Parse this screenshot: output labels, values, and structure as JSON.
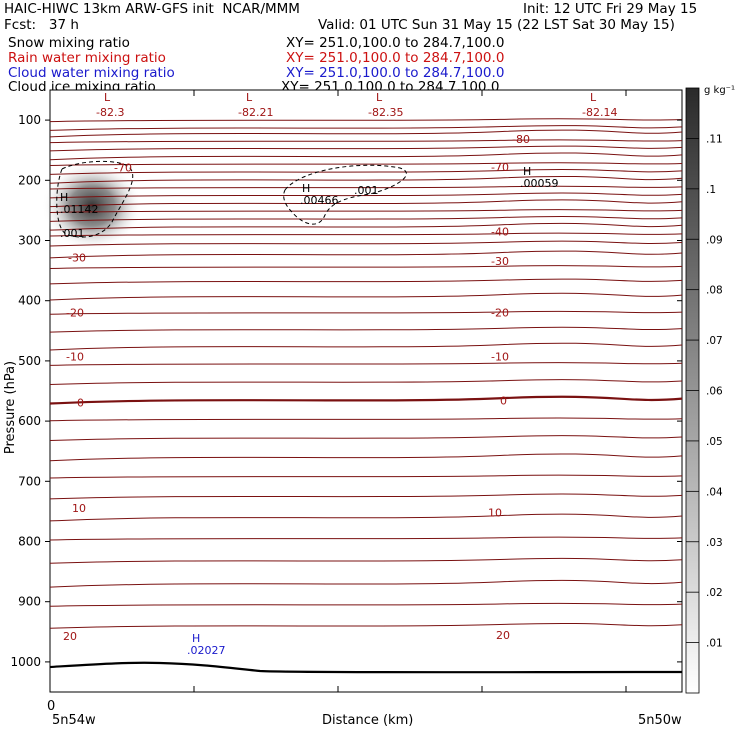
{
  "header": {
    "left1": "HAIC-HIWC 13km ARW-GFS init  NCAR/MMM",
    "right1": "Init: 12 UTC Fri 29 May 15",
    "left2": "Fcst:   37 h",
    "right2": "Valid: 01 UTC Sun 31 May 15 (22 LST Sat 30 May 15)",
    "fields": [
      {
        "name": "Snow mixing ratio",
        "xy": "XY= 251.0,100.0 to 284.7,100.0",
        "color": "#000000"
      },
      {
        "name": "Rain water mixing ratio",
        "xy": "XY= 251.0,100.0 to 284.7,100.0",
        "color": "#cc1111"
      },
      {
        "name": "Cloud water mixing ratio",
        "xy": "XY= 251.0,100.0 to 284.7,100.0",
        "color": "#1a1acc"
      },
      {
        "name": "Cloud ice mixing ratio",
        "xy": "XY= 251.0,100.0 to 284.7,100.0",
        "color": "#000000"
      }
    ]
  },
  "chart_data": {
    "type": "contour",
    "ylabel": "Pressure (hPa)",
    "xlabel": "Distance (km)",
    "x_ticks": [
      "0"
    ],
    "x_endpoints": [
      "5n54w",
      "5n50w"
    ],
    "y_ticks": [
      100,
      200,
      300,
      400,
      500,
      600,
      700,
      800,
      900,
      1000
    ],
    "ylim": [
      1050,
      50
    ],
    "temperature_contour_labels": [
      "-80",
      "-70",
      "-40",
      "-30",
      "-20",
      "-10",
      "0",
      "10",
      "20"
    ],
    "low_labels": [
      {
        "symbol": "L",
        "value": "-82.3"
      },
      {
        "symbol": "L",
        "value": "-82.21"
      },
      {
        "symbol": "L",
        "value": "-82.35"
      },
      {
        "symbol": "L",
        "value": "-82.14"
      }
    ],
    "high_labels": [
      {
        "symbol": "H",
        "value": ".01142",
        "series": "snow"
      },
      {
        "symbol": "H",
        "value": ".00466",
        "series": "cloud ice"
      },
      {
        "symbol": "H",
        "value": ".00059",
        "series": "cloud ice"
      },
      {
        "symbol": "H",
        "value": ".02027",
        "series": "cloud water"
      }
    ],
    "other_labels": [
      ".001",
      ".001"
    ],
    "colorbar": {
      "unit": "g kg⁻¹",
      "ticks": [
        ".01",
        ".02",
        ".03",
        ".04",
        ".05",
        ".06",
        ".07",
        ".08",
        ".09",
        ".1",
        ".11"
      ]
    },
    "colors": {
      "temperature": "#7a1111",
      "surface": "#000000",
      "shade": "#3a3a3a"
    }
  }
}
